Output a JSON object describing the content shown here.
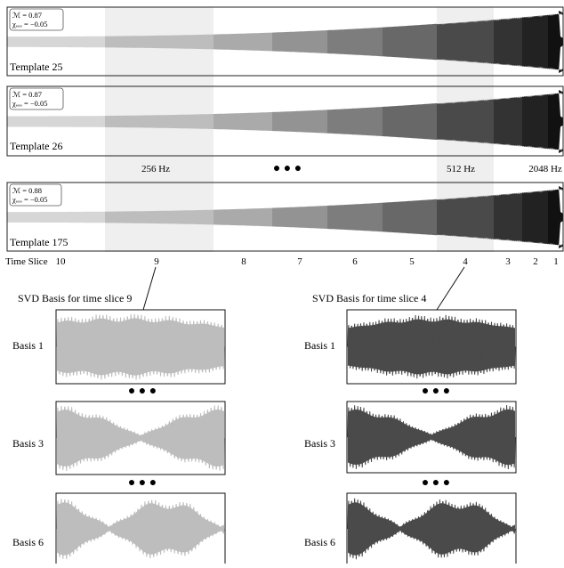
{
  "templates": [
    {
      "label": "Template 25",
      "params": {
        "mass": "ℳ = 0.87",
        "chi": "χₑₒₒ = −0.05"
      }
    },
    {
      "label": "Template 26",
      "params": {
        "mass": "ℳ = 0.87",
        "chi": "χₑₒₒ = −0.05"
      }
    },
    {
      "label": "Template 175",
      "params": {
        "mass": "ℳ = 0.88",
        "chi": "χₑₒₒ = −0.05"
      }
    }
  ],
  "frequency_labels": [
    "256 Hz",
    "512 Hz",
    "2048 Hz"
  ],
  "ellipsis": "● ● ●",
  "time_slice": {
    "title": "Time Slice",
    "numbers": [
      "10",
      "9",
      "8",
      "7",
      "6",
      "5",
      "4",
      "3",
      "2",
      "1"
    ]
  },
  "svd_panels": [
    {
      "title": "SVD Basis for time slice 9",
      "color": "#bdbdbd",
      "bases": [
        "Basis 1",
        "Basis 3",
        "Basis 6"
      ]
    },
    {
      "title": "SVD Basis for time slice 4",
      "color": "#4a4a4a",
      "bases": [
        "Basis 1",
        "Basis 3",
        "Basis 6"
      ]
    }
  ],
  "segment_colors": [
    "#d6d6d6",
    "#bdbdbd",
    "#aaaaaa",
    "#939393",
    "#7d7d7d",
    "#686868",
    "#4a4a4a",
    "#333333",
    "#222222",
    "#111111"
  ]
}
